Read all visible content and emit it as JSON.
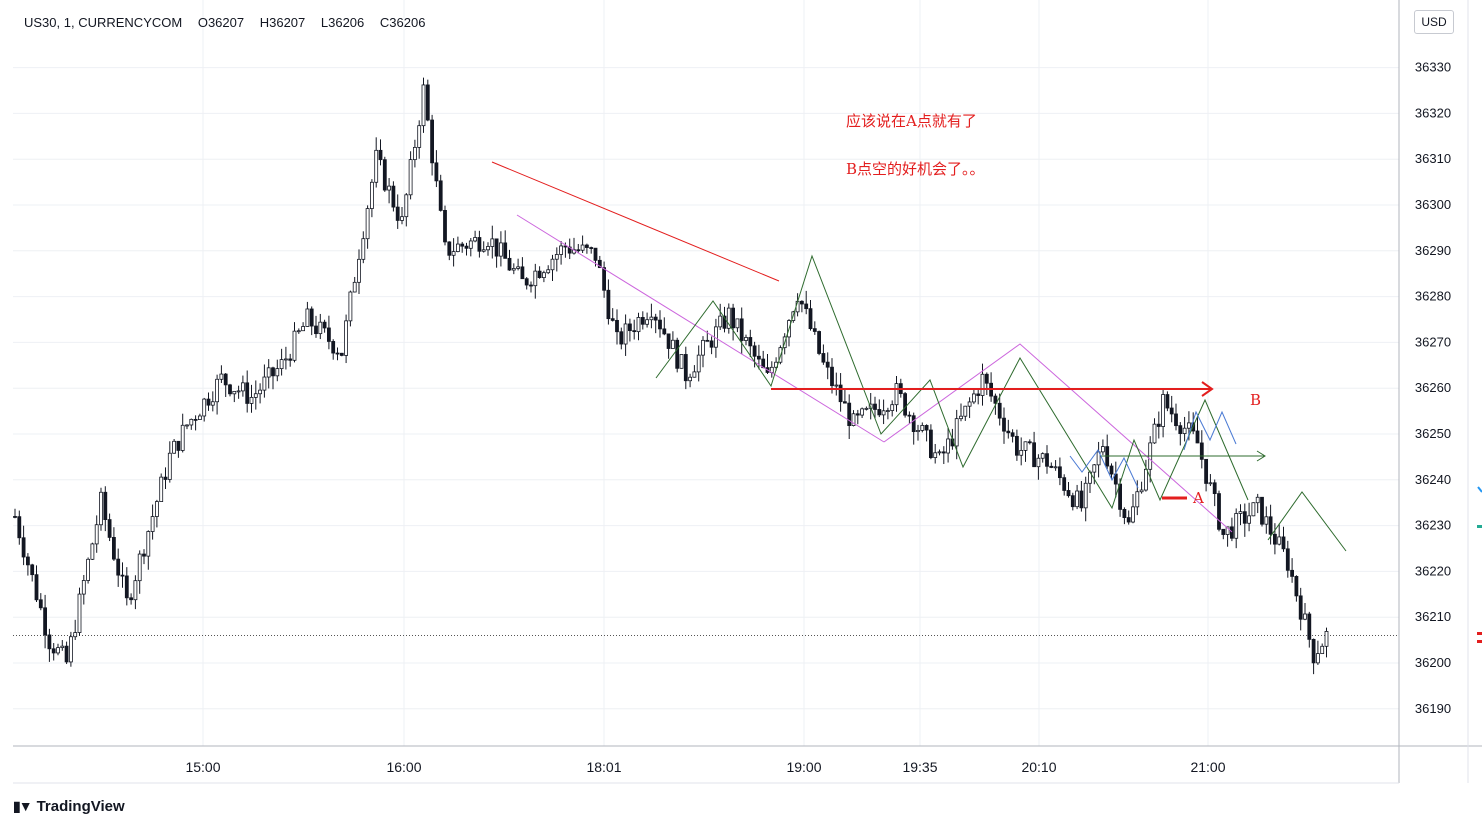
{
  "header": {
    "symbol": "US30, 1, CURRENCYCOM",
    "open": "O36207",
    "high": "H36207",
    "low": "L36206",
    "close": "C36206"
  },
  "currency_label": "USD",
  "brand": "TradingView",
  "annotations": {
    "note_line1": "应该说在A点就有了",
    "note_line2": "B点空的好机会了。。",
    "label_a": "A",
    "label_b": "B"
  },
  "colors": {
    "candle": "#131722",
    "red": "#e31e1e",
    "green": "#2e6b2e",
    "violet": "#cc66dd",
    "blue": "#4a7ad4",
    "grid": "#eef0f4"
  },
  "chart_data": {
    "type": "candlestick",
    "y_ticks": [
      36190,
      36200,
      36210,
      36220,
      36230,
      36240,
      36250,
      36260,
      36270,
      36280,
      36290,
      36300,
      36310,
      36320,
      36330
    ],
    "x_ticks": [
      "15:00",
      "16:00",
      "18:01",
      "19:00",
      "19:35",
      "20:10",
      "21:00"
    ],
    "last_price": 36206,
    "price_path": [
      {
        "t": 0,
        "p": 36232
      },
      {
        "t": 8,
        "p": 36205
      },
      {
        "t": 12,
        "p": 36200
      },
      {
        "t": 20,
        "p": 36235
      },
      {
        "t": 26,
        "p": 36213
      },
      {
        "t": 36,
        "p": 36245
      },
      {
        "t": 40,
        "p": 36252
      },
      {
        "t": 48,
        "p": 36262
      },
      {
        "t": 55,
        "p": 36258
      },
      {
        "t": 62,
        "p": 36265
      },
      {
        "t": 68,
        "p": 36275
      },
      {
        "t": 76,
        "p": 36268
      },
      {
        "t": 80,
        "p": 36290
      },
      {
        "t": 84,
        "p": 36310
      },
      {
        "t": 90,
        "p": 36296
      },
      {
        "t": 95,
        "p": 36325
      },
      {
        "t": 100,
        "p": 36290
      },
      {
        "t": 110,
        "p": 36293
      },
      {
        "t": 118,
        "p": 36283
      },
      {
        "t": 128,
        "p": 36291
      },
      {
        "t": 135,
        "p": 36289
      },
      {
        "t": 140,
        "p": 36270
      },
      {
        "t": 148,
        "p": 36278
      },
      {
        "t": 156,
        "p": 36263
      },
      {
        "t": 166,
        "p": 36276
      },
      {
        "t": 175,
        "p": 36262
      },
      {
        "t": 182,
        "p": 36281
      },
      {
        "t": 188,
        "p": 36265
      },
      {
        "t": 195,
        "p": 36252
      },
      {
        "t": 205,
        "p": 36259
      },
      {
        "t": 215,
        "p": 36244
      },
      {
        "t": 225,
        "p": 36262
      },
      {
        "t": 233,
        "p": 36247
      },
      {
        "t": 240,
        "p": 36244
      },
      {
        "t": 248,
        "p": 36234
      },
      {
        "t": 253,
        "p": 36248
      },
      {
        "t": 259,
        "p": 36230
      },
      {
        "t": 267,
        "p": 36257
      },
      {
        "t": 275,
        "p": 36248
      },
      {
        "t": 281,
        "p": 36228
      },
      {
        "t": 289,
        "p": 36234
      },
      {
        "t": 296,
        "p": 36222
      },
      {
        "t": 302,
        "p": 36202
      },
      {
        "t": 305,
        "p": 36206
      }
    ]
  }
}
